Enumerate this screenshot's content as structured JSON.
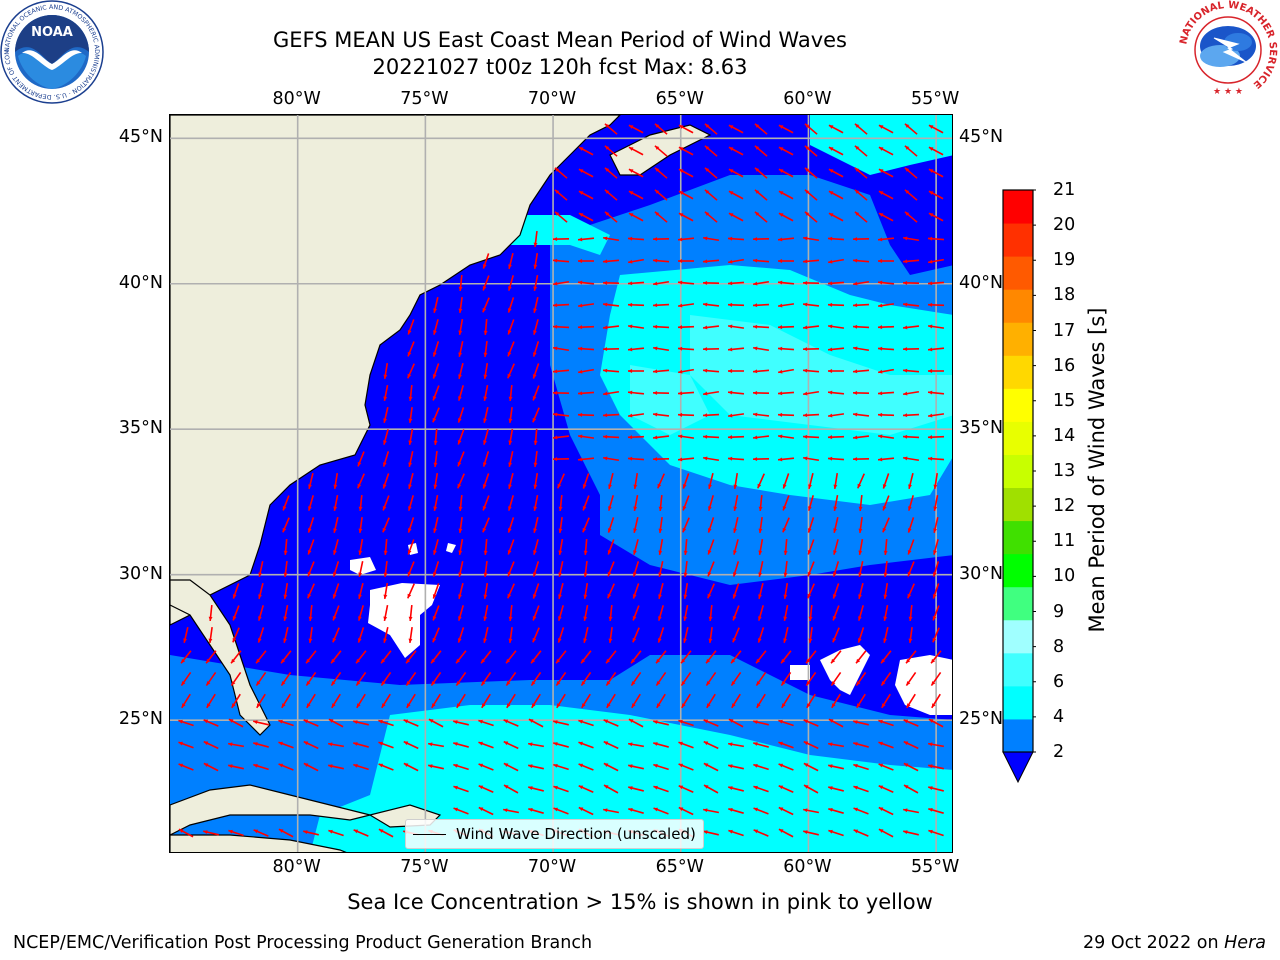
{
  "header": {
    "title_line1": "GEFS MEAN US East Coast Mean Period of Wind Waves",
    "title_line2": "20221027 t00z 120h fcst   Max: 8.63"
  },
  "map": {
    "lon_ticks": [
      "80°W",
      "75°W",
      "70°W",
      "65°W",
      "60°W",
      "55°W"
    ],
    "lat_ticks": [
      "45°N",
      "40°N",
      "35°N",
      "30°N",
      "25°N"
    ],
    "extent": {
      "lon_min": -85,
      "lon_max": -54.3,
      "lat_min": 20.4,
      "lat_max": 45.8
    },
    "land_color": "#eeeedc",
    "grid": true,
    "arrow_color": "#ff0000",
    "legend_text": "Wind Wave Direction (unscaled)"
  },
  "colorbar": {
    "label": "Mean Period of Wind Waves [s]",
    "ticks": [
      "21",
      "20",
      "19",
      "18",
      "17",
      "16",
      "15",
      "14",
      "13",
      "12",
      "11",
      "10",
      "9",
      "8",
      "6",
      "4",
      "2"
    ],
    "colors": [
      "#0000ff",
      "#0080ff",
      "#00ffff",
      "#40ffff",
      "#a0ffff",
      "#40ff80",
      "#00ff00",
      "#40e000",
      "#a0e000",
      "#c8ff00",
      "#e8ff00",
      "#ffff00",
      "#ffd800",
      "#ffb000",
      "#ff8800",
      "#ff5a00",
      "#ff3000",
      "#ff0000"
    ],
    "extend": "min"
  },
  "chart_data": {
    "type": "heatmap",
    "variable": "Mean Period of Wind Waves",
    "units": "s",
    "max_value": 8.63,
    "colorbar_range": [
      2,
      21
    ]
  },
  "footer": {
    "note": "Sea Ice Concentration > 15% is shown in pink to yellow",
    "credit": "NCEP/EMC/Verification Post Processing Product Generation Branch",
    "date": "29 Oct 2022 on ",
    "host": "Hera"
  },
  "logos": {
    "noaa_text": "NOAA",
    "noaa_ring": "NATIONAL OCEANIC AND ATMOSPHERIC ADMINISTRATION · U.S. DEPARTMENT OF COMMERCE",
    "nws_ring": "NATIONAL WEATHER SERVICE"
  }
}
